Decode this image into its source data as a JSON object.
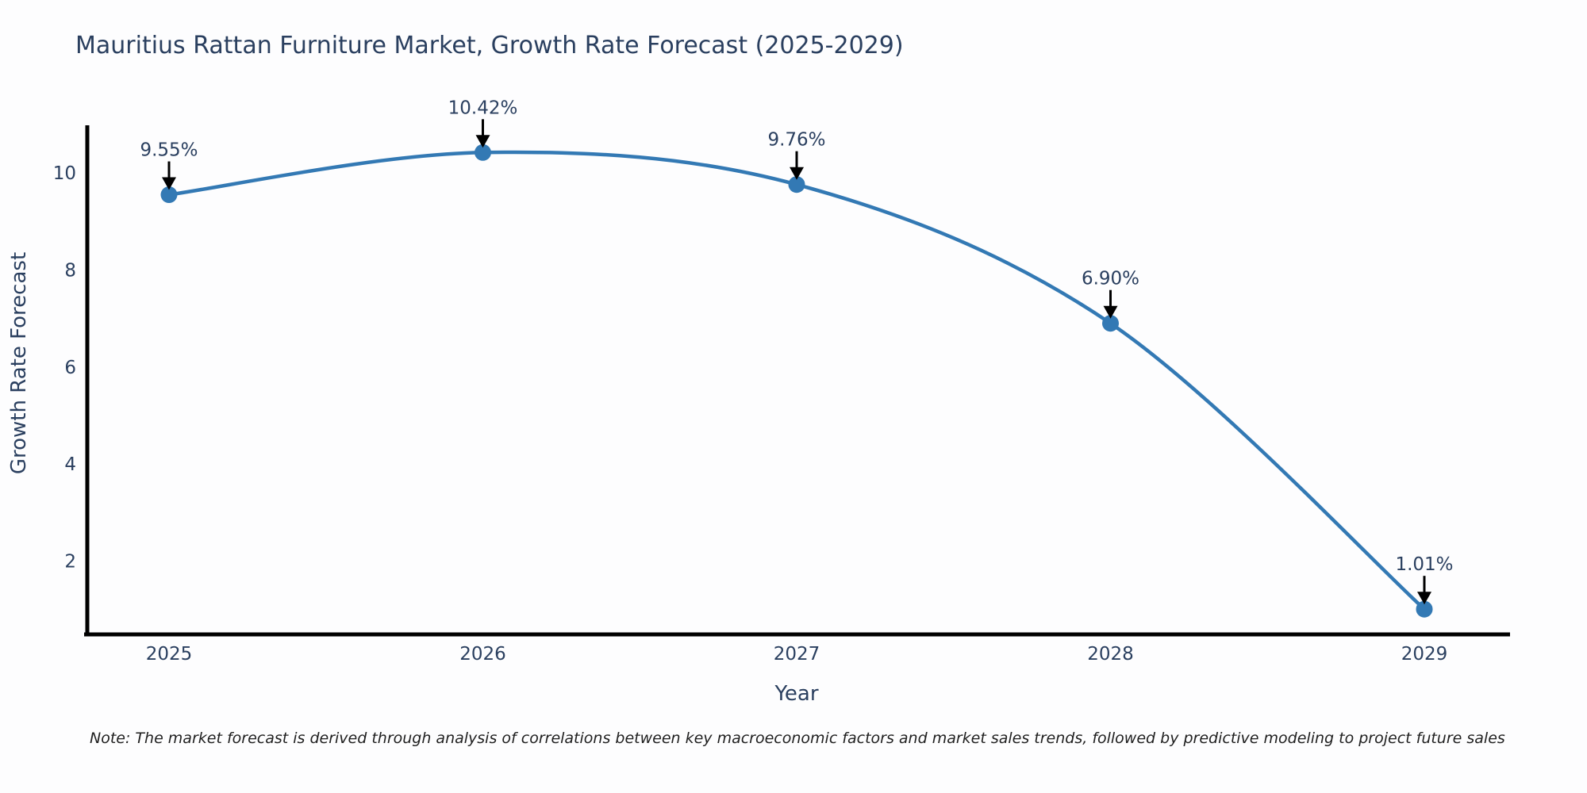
{
  "note": "Note: The market forecast is derived through analysis of correlations between key macroeconomic factors and market sales trends, followed by predictive modeling to project future sales",
  "chart_data": {
    "type": "line",
    "title": "Mauritius Rattan Furniture Market, Growth Rate Forecast (2025-2029)",
    "xlabel": "Year",
    "ylabel": "Growth Rate Forecast",
    "categories": [
      "2025",
      "2026",
      "2027",
      "2028",
      "2029"
    ],
    "values": [
      9.55,
      10.42,
      9.76,
      6.9,
      1.01
    ],
    "point_labels": [
      "9.55%",
      "10.42%",
      "9.76%",
      "6.90%",
      "1.01%"
    ],
    "yticks": [
      2,
      4,
      6,
      8,
      10
    ],
    "ylim": [
      0.45,
      10.95
    ],
    "grid": false,
    "legend": "none",
    "line_shape": "spline",
    "marker": "circle",
    "annotation_arrows": true,
    "colors": {
      "line": "#3379b4",
      "marker": "#3379b4",
      "axis": "#000000",
      "text": "#2a3f5f",
      "arrow": "#000000"
    }
  }
}
